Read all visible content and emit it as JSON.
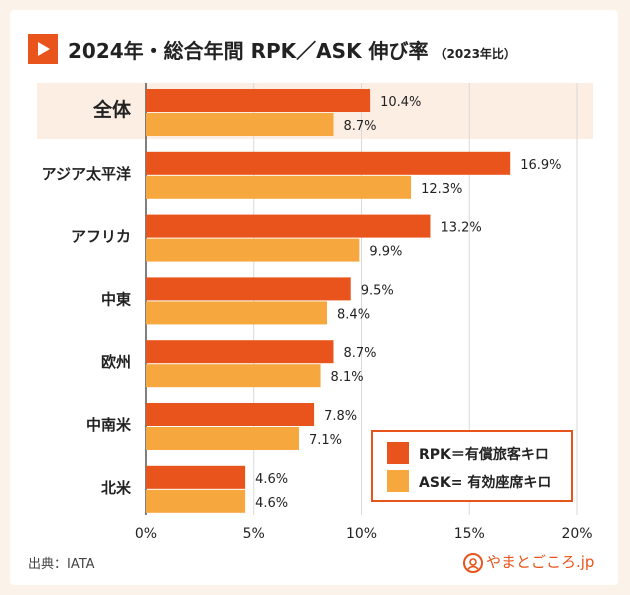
{
  "title": {
    "main": "2024年・総合年間 RPK／ASK 伸び率",
    "sub": "（2023年比）"
  },
  "source": "出典：IATA",
  "brand": "やまとごころ.jp",
  "colors": {
    "rpk": "#e8541b",
    "ask": "#f6a83e",
    "highlight_row": "#fdeee4",
    "grid": "#d9d9d9"
  },
  "legend": [
    {
      "label": "RPK＝有償旅客キロ",
      "color": "#e8541b"
    },
    {
      "label": "ASK= 有効座席キロ",
      "color": "#f6a83e"
    }
  ],
  "chart_data": {
    "type": "bar",
    "orientation": "horizontal",
    "categories": [
      "全体",
      "アジア太平洋",
      "アフリカ",
      "中東",
      "欧州",
      "中南米",
      "北米"
    ],
    "highlight_category": "全体",
    "series": [
      {
        "name": "RPK＝有償旅客キロ",
        "values": [
          10.4,
          16.9,
          13.2,
          9.5,
          8.7,
          7.8,
          4.6
        ],
        "labels": [
          "10.4%",
          "16.9%",
          "13.2%",
          "9.5%",
          "8.7%",
          "7.8%",
          "4.6%"
        ]
      },
      {
        "name": "ASK= 有効座席キロ",
        "values": [
          8.7,
          12.3,
          9.9,
          8.4,
          8.1,
          7.1,
          4.6
        ],
        "labels": [
          "8.7%",
          "12.3%",
          "9.9%",
          "8.4%",
          "8.1%",
          "7.1%",
          "4.6%"
        ]
      }
    ],
    "xlim": [
      0,
      20
    ],
    "ticks": [
      0,
      5,
      10,
      15,
      20
    ],
    "tick_labels": [
      "0%",
      "5%",
      "10%",
      "15%",
      "20%"
    ],
    "grid": true,
    "legend_position": "bottom-right"
  }
}
